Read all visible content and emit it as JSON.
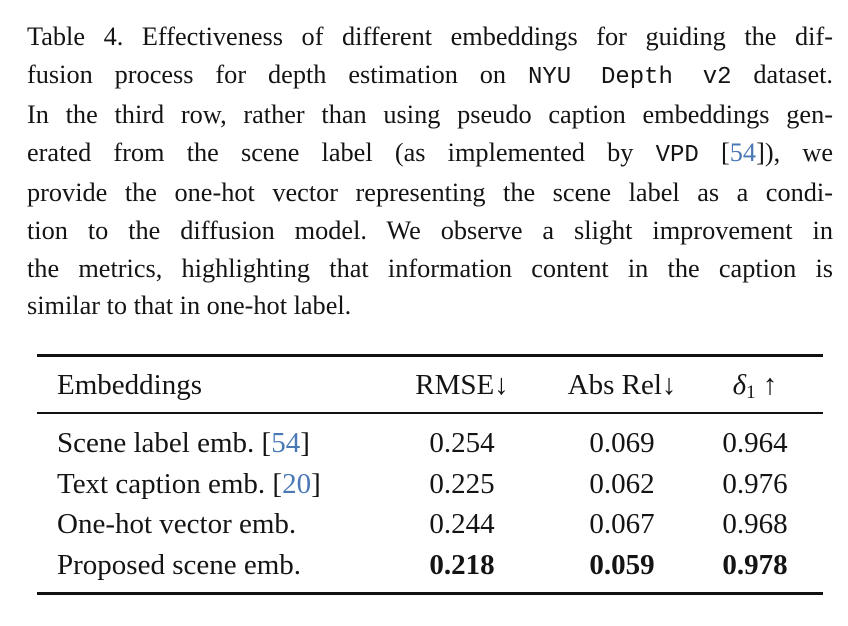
{
  "caption": {
    "line1_text": "Table 4. Effectiveness of different embeddings for guiding the dif-",
    "line2_a": "fusion process for depth estimation on ",
    "line2_dataset": "NYU Depth v2",
    "line2_b": " dataset.",
    "line3": "In the third row, rather than using pseudo caption embeddings gen-",
    "line4_a": "erated from the scene label (as implemented by ",
    "line4_method": "VPD",
    "line4_b": " [",
    "line4_cite": "54",
    "line4_c": "]), we",
    "line5": "provide the one-hot vector representing the scene label as a condi-",
    "line6": "tion to the diffusion model.  We observe a slight improvement in",
    "line7": "the metrics, highlighting that information content in the caption is",
    "line8": "similar to that in one-hot label."
  },
  "table": {
    "headers": {
      "embeddings": "Embeddings",
      "rmse": "RMSE↓",
      "absrel": "Abs Rel↓",
      "delta_symbol": "δ",
      "delta_sub": "1",
      "delta_arrow": " ↑"
    },
    "rows": [
      {
        "name": "Scene label emb. [",
        "cite": "54",
        "close": "]",
        "rmse": "0.254",
        "absrel": "0.069",
        "delta": "0.964"
      },
      {
        "name": "Text caption emb. [",
        "cite": "20",
        "close": "]",
        "rmse": "0.225",
        "absrel": "0.062",
        "delta": "0.976"
      },
      {
        "name": "One-hot vector emb.",
        "rmse": "0.244",
        "absrel": "0.067",
        "delta": "0.968"
      },
      {
        "name": "Proposed scene emb.",
        "rmse": "0.218",
        "absrel": "0.059",
        "delta": "0.978"
      }
    ]
  },
  "colors": {
    "citation_link": "#4a78b5",
    "text": "#141414"
  }
}
